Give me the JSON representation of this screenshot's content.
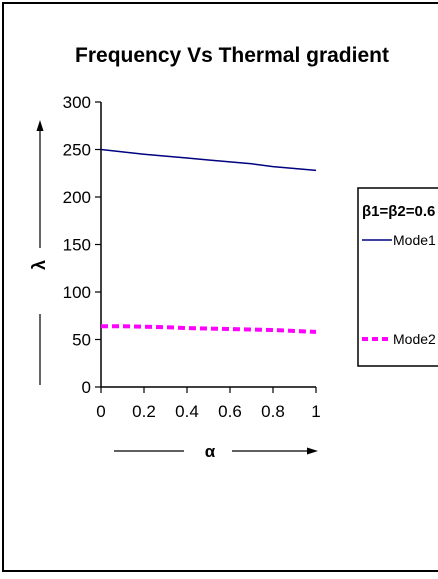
{
  "chart_data": {
    "type": "line",
    "title": "Frequency Vs Thermal gradient",
    "xlabel": "α",
    "ylabel": "λ",
    "xlim": [
      0,
      1
    ],
    "ylim": [
      0,
      300
    ],
    "x_ticks": [
      0,
      0.2,
      0.4,
      0.6,
      0.8,
      1
    ],
    "x_tick_labels": [
      "0",
      "0.2",
      "0.4",
      "0.6",
      "0.8",
      "1"
    ],
    "y_ticks": [
      0,
      50,
      100,
      150,
      200,
      250,
      300
    ],
    "y_tick_labels": [
      "0",
      "50",
      "100",
      "150",
      "200",
      "250",
      "300"
    ],
    "grid": false,
    "legend": {
      "placement": "right",
      "title": "β1=β2=0.6",
      "entries": [
        "Mode1",
        "Mode2"
      ]
    },
    "x": [
      0,
      0.1,
      0.2,
      0.3,
      0.4,
      0.5,
      0.6,
      0.7,
      0.8,
      0.9,
      1.0
    ],
    "series": [
      {
        "name": "Mode1",
        "color": "#000080",
        "style": "solid",
        "values": [
          250,
          247.5,
          245,
          243,
          241,
          239,
          237,
          235,
          232,
          230,
          228
        ]
      },
      {
        "name": "Mode2",
        "color": "#ff00ff",
        "style": "dashed",
        "values": [
          64,
          64,
          63.5,
          63,
          62,
          61.5,
          61,
          60.5,
          60,
          59,
          58
        ]
      }
    ]
  }
}
